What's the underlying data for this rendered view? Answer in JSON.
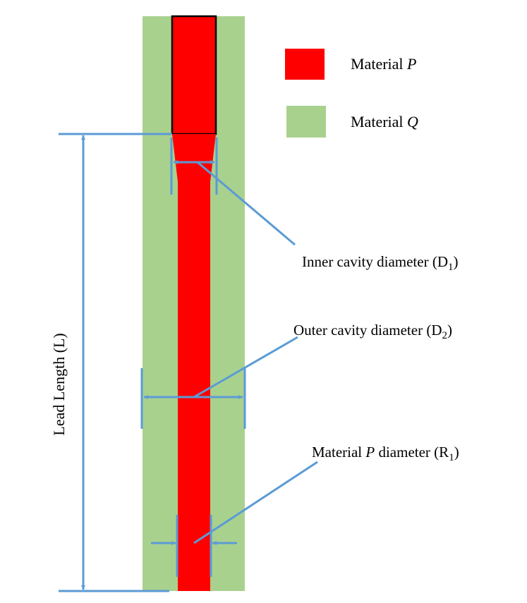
{
  "colors": {
    "material_p": "#ff0000",
    "material_q": "#a9d18e",
    "annotation": "#5b9bd5",
    "outline": "#000000"
  },
  "legend": {
    "items": [
      {
        "prefix": "Material ",
        "symbol": "P",
        "color_key": "material_p"
      },
      {
        "prefix": "Material ",
        "symbol": "Q",
        "color_key": "material_q"
      }
    ]
  },
  "labels": {
    "inner_cavity": {
      "text": "Inner cavity diameter (D",
      "sub": "1",
      "close": ")"
    },
    "outer_cavity": {
      "text": "Outer cavity diameter (D",
      "sub": "2",
      "close": ")"
    },
    "material_p_diameter": {
      "prefix": "Material ",
      "symbol": "P",
      "text": " diameter (R",
      "sub": "1",
      "close": ")"
    },
    "lead_length": "Lead Length (L)"
  }
}
